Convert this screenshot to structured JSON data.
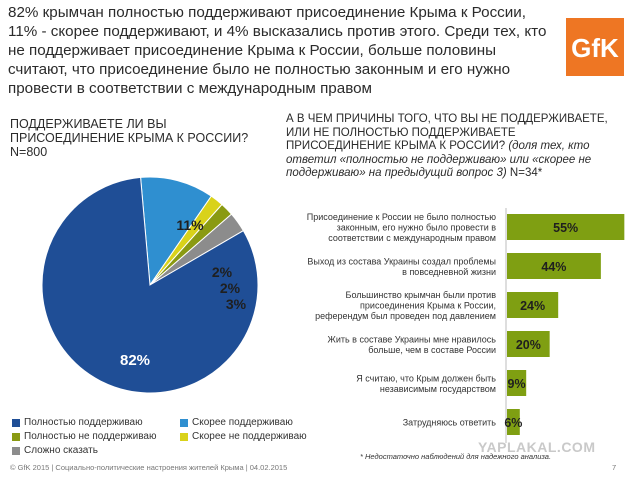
{
  "headline": "82% крымчан полностью поддерживают присоединение Крыма к России, 11% - скорее поддерживают, и  4% высказались против этого. Среди тех, кто не поддерживает присоединение Крыма к России, больше половины считают, что присоединение было не полностью законным и его нужно провести в соответствии с международным правом",
  "logo_text": "GfK",
  "left_question": "ПОДДЕРЖИВАЕТЕ ЛИ ВЫ ПРИСОЕДИНЕНИЕ КРЫМА К РОССИИ?",
  "left_n": "N=800",
  "right_question": "А В ЧЕМ ПРИЧИНЫ ТОГО, ЧТО ВЫ НЕ ПОДДЕРЖИВАЕТЕ, ИЛИ НЕ ПОЛНОСТЬЮ ПОДДЕРЖИВАЕТЕ ПРИСОЕДИНЕНИЕ КРЫМА К РОССИИ?",
  "right_sub": "(доля тех, кто ответил «полностью не поддерживаю» или «скорее не поддерживаю» на предыдущий вопрос 3)",
  "right_n": "N=34*",
  "footer_left": "© GfK 2015 | Социально-политические настроения жителей Крыма | 04.02.2015",
  "footer_note": "* Недостаточно наблюдений для надежного анализа.",
  "footer_page": "7",
  "watermark": "YAPLAKAL.COM",
  "colors": {
    "blue_dark": "#1f4e96",
    "blue_light": "#2f8fd0",
    "olive": "#8a9a12",
    "yellow": "#d9d21a",
    "gray": "#8c8c8c",
    "bar": "#7f9f12",
    "gfk": "#ee7623"
  },
  "chart_data": [
    {
      "type": "pie",
      "slices": [
        {
          "label": "Полностью поддерживаю",
          "value": 82,
          "display": "82%",
          "color": "#1f4e96"
        },
        {
          "label": "Скорее поддерживаю",
          "value": 11,
          "display": "11%",
          "color": "#2f8fd0"
        },
        {
          "label": "Скорее не поддерживаю",
          "value": 2,
          "display": "2%",
          "color": "#d9d21a"
        },
        {
          "label": "Полностью не поддерживаю",
          "value": 2,
          "display": "2%",
          "color": "#8a9a12"
        },
        {
          "label": "Сложно сказать",
          "value": 3,
          "display": "3%",
          "color": "#8c8c8c"
        }
      ],
      "legend": [
        {
          "label": "Полностью поддерживаю",
          "color": "#1f4e96"
        },
        {
          "label": "Скорее поддерживаю",
          "color": "#2f8fd0"
        },
        {
          "label": "Полностью не поддерживаю",
          "color": "#8a9a12"
        },
        {
          "label": "Скорее не поддерживаю",
          "color": "#d9d21a"
        },
        {
          "label": "Сложно сказать",
          "color": "#8c8c8c"
        }
      ],
      "legend_position": "bottom"
    },
    {
      "type": "bar",
      "orientation": "horizontal",
      "categories": [
        "Присоединение к России не было полностью законным, его нужно было провести в соответствии с международным правом",
        "Выход из состава Украины создал проблемы в повседневной жизни",
        "Большинство крымчан были против присоединения Крыма к России, референдум был проведен под давлением",
        "Жить в составе Украины мне нравилось больше, чем в составе России",
        "Я считаю, что Крым должен быть независимым государством",
        "Затрудняюсь ответить"
      ],
      "category_lines": [
        [
          "Присоединение к России не было полностью",
          "законным, его нужно было провести в",
          "соответствии с международным правом"
        ],
        [
          "Выход из состава Украины создал проблемы",
          "в повседневной жизни"
        ],
        [
          "Большинство крымчан были против",
          "присоединения Крыма к России,",
          "референдум был проведен под давлением"
        ],
        [
          "Жить в составе Украины мне нравилось",
          "больше, чем в составе России"
        ],
        [
          "Я считаю, что Крым должен быть",
          "независимым государством"
        ],
        [
          "Затрудняюсь ответить"
        ]
      ],
      "values": [
        55,
        44,
        24,
        20,
        9,
        6
      ],
      "labels": [
        "55%",
        "44%",
        "24%",
        "20%",
        "9%",
        "6%"
      ],
      "xlim": [
        0,
        60
      ]
    }
  ]
}
